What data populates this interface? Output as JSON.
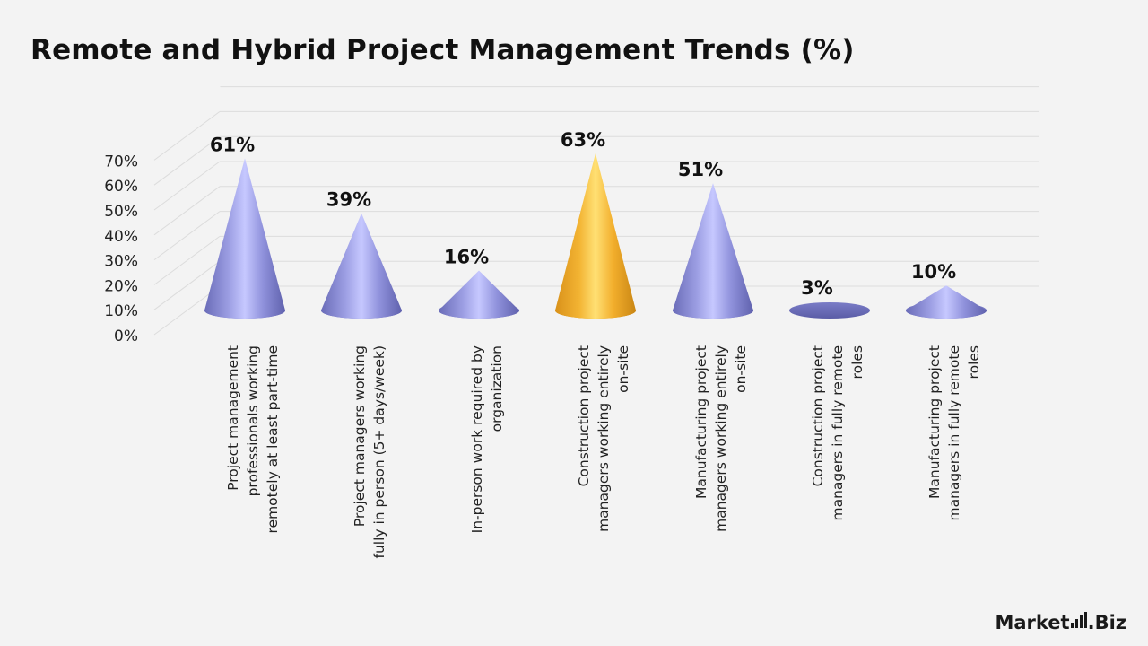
{
  "title": "Remote and Hybrid Project Management Trends (%)",
  "brand": {
    "left": "Market",
    "right": ".Biz"
  },
  "colors": {
    "cone": "#8c8ed6",
    "highlight": "#f4b223",
    "grid": "#dcdcdc"
  },
  "chart_data": {
    "type": "bar",
    "style": "3d-cone",
    "title": "Remote and Hybrid Project Management Trends (%)",
    "categories": [
      "Project management professionals working remotely at least part-time",
      "Project managers working fully in person (5+ days/week)",
      "In-person work required by organization",
      "Construction project managers working entirely on-site",
      "Manufacturing project managers working entirely on-site",
      "Construction project managers in fully remote roles",
      "Manufacturing project managers in fully remote roles"
    ],
    "category_lines": [
      [
        "Project management",
        "professionals working",
        "remotely at least part-time"
      ],
      [
        "Project managers working",
        "fully in person (5+ days/week)"
      ],
      [
        "In-person work required by",
        "organization"
      ],
      [
        "Construction project",
        "managers working entirely",
        "on-site"
      ],
      [
        "Manufacturing project",
        "managers working entirely",
        "on-site"
      ],
      [
        "Construction project",
        "managers in fully remote",
        "roles"
      ],
      [
        "Manufacturing project",
        "managers in fully remote",
        "roles"
      ]
    ],
    "values": [
      61,
      39,
      16,
      63,
      51,
      3,
      10
    ],
    "data_labels": [
      "61%",
      "39%",
      "16%",
      "63%",
      "51%",
      "3%",
      "10%"
    ],
    "highlight_index": 3,
    "yticks": [
      "0%",
      "10%",
      "20%",
      "30%",
      "40%",
      "50%",
      "60%",
      "70%"
    ],
    "ylim": [
      0,
      70
    ],
    "grid": true,
    "legend": "none"
  }
}
